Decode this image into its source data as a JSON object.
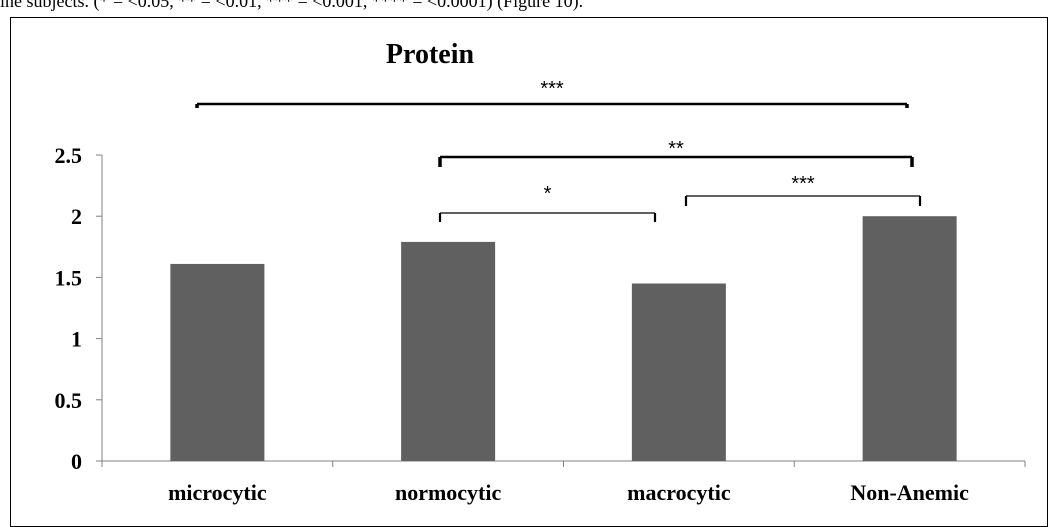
{
  "caption_fragment": "ine subjects. (* = <0.05, ** = <0.01, *** = <0.001, **** = <0.0001) (Figure 10).",
  "chart_data": {
    "type": "bar",
    "title": "Protein",
    "xlabel": "",
    "ylabel": "",
    "categories": [
      "microcytic",
      "normocytic",
      "macrocytic",
      "Non-Anemic"
    ],
    "values": [
      1.61,
      1.79,
      1.45,
      2.0
    ],
    "ylim": [
      0,
      2.5
    ],
    "yticks": [
      "0",
      "0.5",
      "1",
      "1.5",
      "2",
      "2.5"
    ],
    "grid": false,
    "legend": "none",
    "bar_color": "#606060",
    "significance": [
      {
        "from": 0,
        "to": 3,
        "label": "***"
      },
      {
        "from": 1,
        "to": 3,
        "label": "**"
      },
      {
        "from": 1,
        "to": 2,
        "label": "*"
      },
      {
        "from": 2,
        "to": 3,
        "label": "***"
      }
    ]
  }
}
